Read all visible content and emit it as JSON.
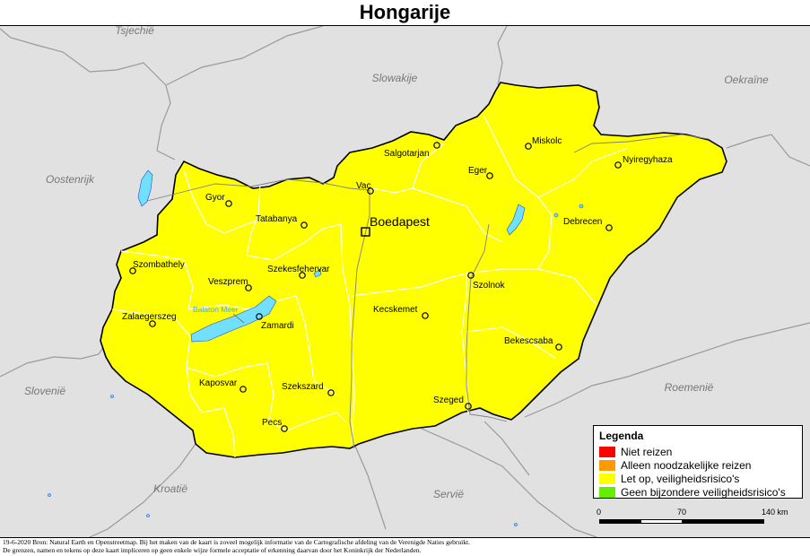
{
  "title": "Hongarije",
  "neighbors": [
    {
      "id": "tsjechie",
      "label": "Tsjechië"
    },
    {
      "id": "slowakije",
      "label": "Slowakije"
    },
    {
      "id": "oekraine",
      "label": "Oekraïne"
    },
    {
      "id": "oostenrijk",
      "label": "Oostenrijk"
    },
    {
      "id": "slovenie",
      "label": "Slovenië"
    },
    {
      "id": "kroatie",
      "label": "Kroatië"
    },
    {
      "id": "servie",
      "label": "Servië"
    },
    {
      "id": "roemenie",
      "label": "Roemenië"
    }
  ],
  "capital": {
    "label": "Boedapest"
  },
  "cities": [
    {
      "id": "miskolc",
      "label": "Miskolc"
    },
    {
      "id": "salgotarjan",
      "label": "Salgotarjan"
    },
    {
      "id": "nyiregyhaza",
      "label": "Nyiregyhaza"
    },
    {
      "id": "eger",
      "label": "Eger"
    },
    {
      "id": "vac",
      "label": "Vac"
    },
    {
      "id": "gyor",
      "label": "Gyor"
    },
    {
      "id": "tatabanya",
      "label": "Tatabanya"
    },
    {
      "id": "debrecen",
      "label": "Debrecen"
    },
    {
      "id": "szombathely",
      "label": "Szombathely"
    },
    {
      "id": "szekesfehervar",
      "label": "Szekesfehervar"
    },
    {
      "id": "veszprem",
      "label": "Veszprem"
    },
    {
      "id": "szolnok",
      "label": "Szolnok"
    },
    {
      "id": "kecskemet",
      "label": "Kecskemet"
    },
    {
      "id": "zalaegerszeg",
      "label": "Zalaegerszeg"
    },
    {
      "id": "zamardi",
      "label": "Zamardi"
    },
    {
      "id": "bekescsaba",
      "label": "Bekescsaba"
    },
    {
      "id": "kaposvar",
      "label": "Kaposvar"
    },
    {
      "id": "szekszard",
      "label": "Szekszard"
    },
    {
      "id": "szeged",
      "label": "Szeged"
    },
    {
      "id": "pecs",
      "label": "Pecs"
    }
  ],
  "lake": {
    "label": "Balaton Meer"
  },
  "legend": {
    "title": "Legenda",
    "items": [
      {
        "label": "Niet reizen",
        "color": "#ff0000"
      },
      {
        "label": "Alleen noodzakelijke reizen",
        "color": "#ff9900"
      },
      {
        "label": "Let op, veiligheidsrisico's",
        "color": "#ffff00"
      },
      {
        "label": "Geen bijzondere veiligheidsrisico's",
        "color": "#66ee00"
      }
    ]
  },
  "scale": {
    "labels": [
      "0",
      "70",
      "140 km"
    ]
  },
  "colors": {
    "country_fill": "#ffff00",
    "surrounding_fill": "#e1e1e1",
    "water": "#73dfff",
    "border": "#000000",
    "region_border": "#ffffff"
  },
  "footer": {
    "line1": "19-6-2020 Bron: Natural Earth en Openstreetmap. Bij het maken van de kaart is zoveel mogelijk informatie van de Cartografische afdeling van de Verenigde Naties gebruikt.",
    "line2": "De grenzen, namen en tekens op deze kaart impliceren op geen enkele wijze formele acceptatie of erkenning daarvan door het Koninkrijk der Nederlanden."
  }
}
